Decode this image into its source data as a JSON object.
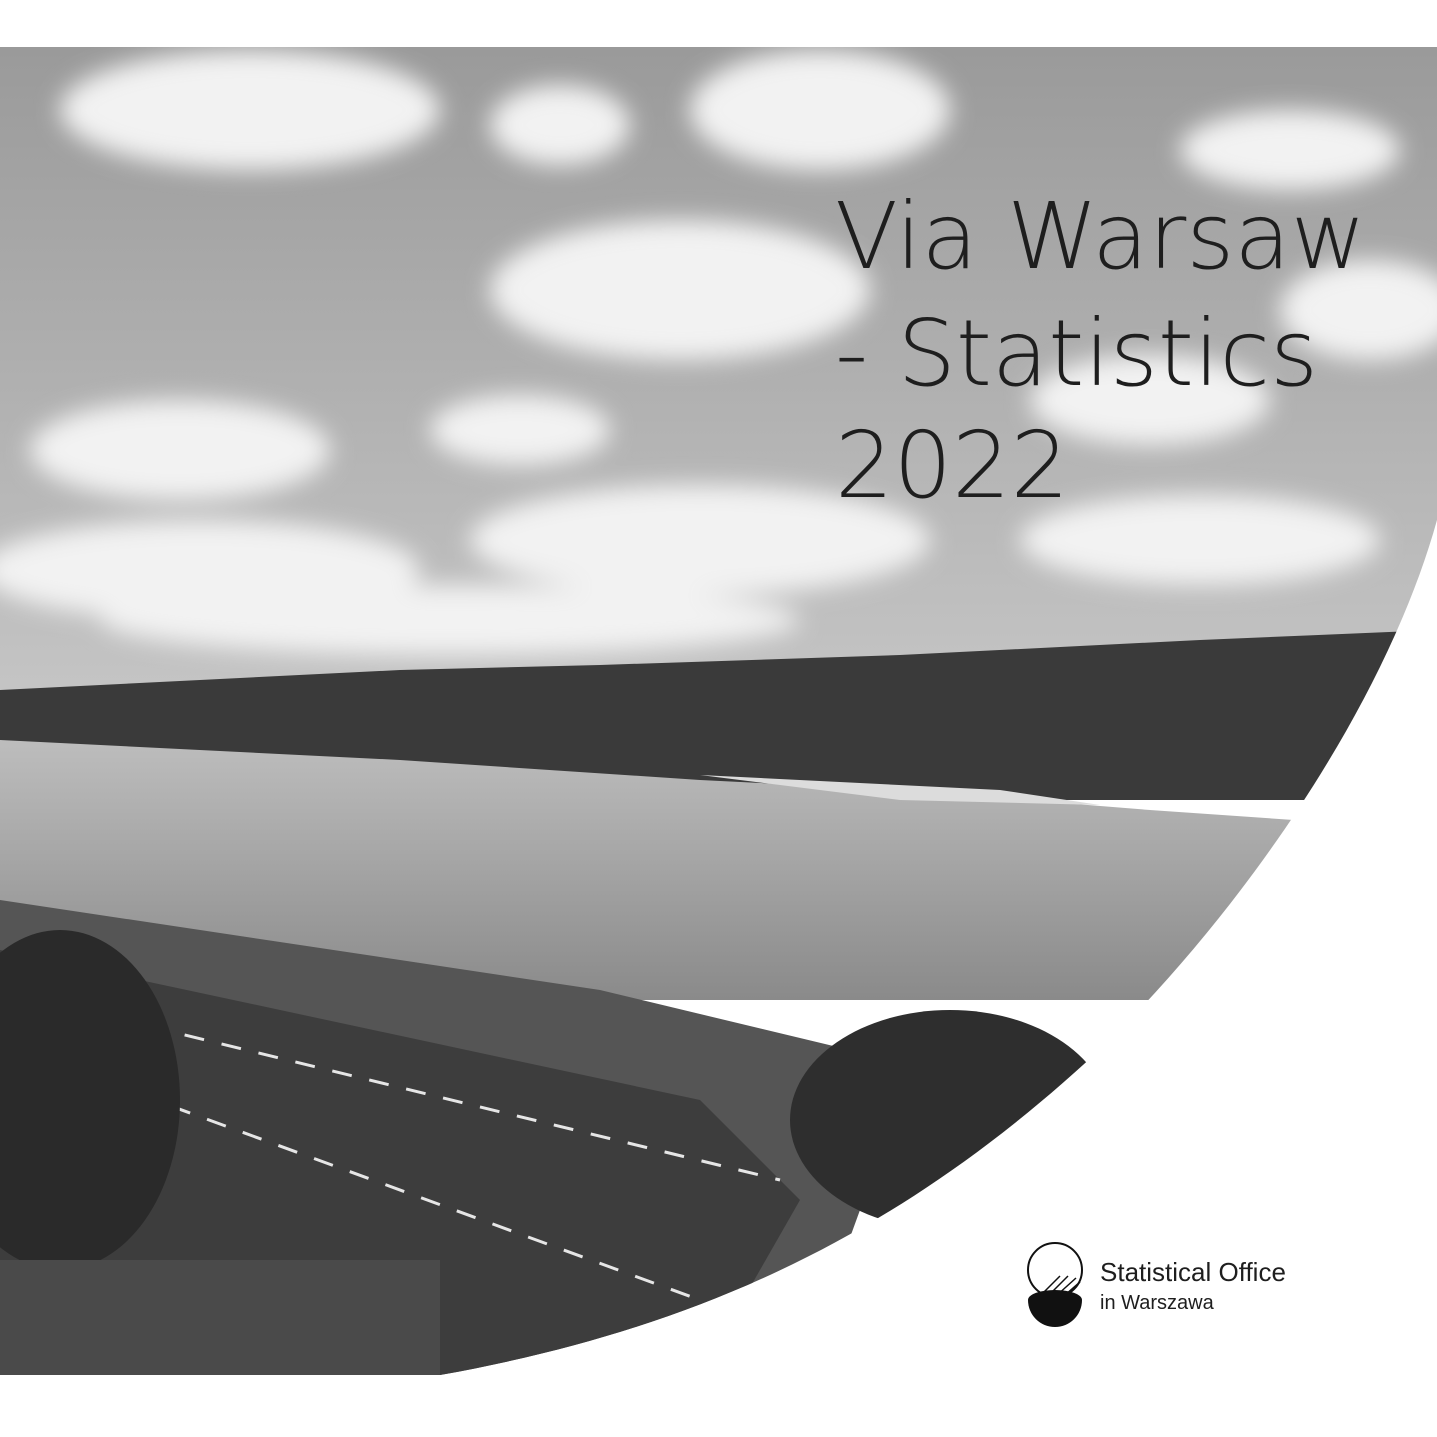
{
  "title": {
    "lines": [
      "Via Warsaw",
      "- Statistics",
      "2022"
    ]
  },
  "logo": {
    "name": "Statistical Office",
    "location": "in Warszawa"
  }
}
